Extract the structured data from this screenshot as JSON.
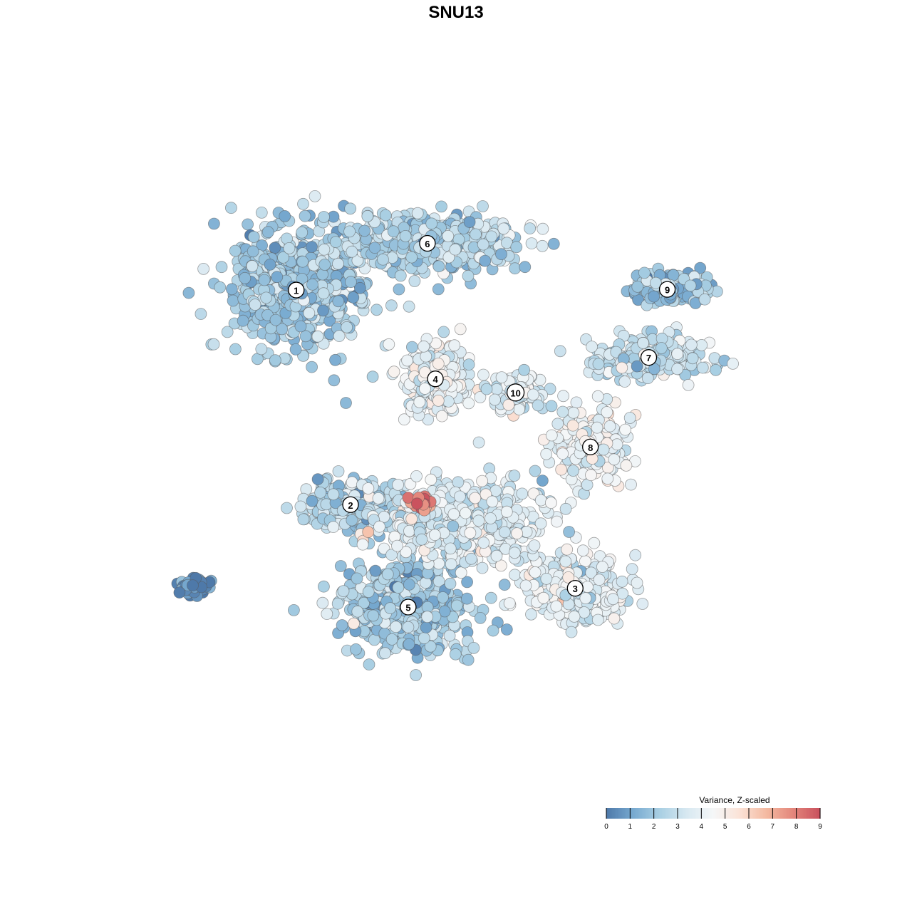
{
  "chart_data": {
    "type": "scatter",
    "title": "SNU13",
    "xlabel": "",
    "ylabel": "",
    "grid": false,
    "legend": {
      "title": "Variance, Z-scaled",
      "position": "bottom-right",
      "range": [
        0,
        9
      ],
      "ticks": [
        "0",
        "1",
        "2",
        "3",
        "4",
        "5",
        "6",
        "7",
        "8",
        "9"
      ],
      "colors": [
        "#4e79a9",
        "#77a9d0",
        "#a9cfe3",
        "#d7e8f1",
        "#f5f7f8",
        "#fbe2d6",
        "#f4b9a0",
        "#e3857b",
        "#c9505d"
      ]
    },
    "xlim": [
      0,
      1000
    ],
    "ylim": [
      0,
      1000
    ],
    "clusters": [
      {
        "label": "1",
        "x": 232,
        "y": 756,
        "value": 2.1,
        "sx": 110,
        "sy": 95,
        "n": 560
      },
      {
        "label": "6",
        "x": 430,
        "y": 828,
        "value": 2.6,
        "sx": 140,
        "sy": 42,
        "n": 520
      },
      {
        "label": "9",
        "x": 792,
        "y": 757,
        "value": 2.0,
        "sx": 62,
        "sy": 22,
        "n": 150
      },
      {
        "label": "7",
        "x": 764,
        "y": 652,
        "value": 3.0,
        "sx": 90,
        "sy": 30,
        "n": 240
      },
      {
        "label": "4",
        "x": 442,
        "y": 619,
        "value": 3.9,
        "sx": 46,
        "sy": 52,
        "n": 270
      },
      {
        "label": "10",
        "x": 563,
        "y": 598,
        "value": 3.6,
        "sx": 38,
        "sy": 30,
        "n": 110
      },
      {
        "label": "8",
        "x": 676,
        "y": 514,
        "value": 4.2,
        "sx": 55,
        "sy": 55,
        "n": 220
      },
      {
        "label": "2",
        "x": 314,
        "y": 425,
        "value": 2.4,
        "sx": 68,
        "sy": 38,
        "n": 250
      },
      {
        "label": "3",
        "x": 653,
        "y": 296,
        "value": 3.8,
        "sx": 78,
        "sy": 48,
        "n": 340
      },
      {
        "label": "5",
        "x": 401,
        "y": 267,
        "value": 2.2,
        "sx": 95,
        "sy": 70,
        "n": 520
      },
      {
        "label": "",
        "x": 480,
        "y": 400,
        "value": 3.6,
        "sx": 120,
        "sy": 60,
        "n": 600
      },
      {
        "label": "",
        "x": 420,
        "y": 428,
        "value": 7.8,
        "sx": 16,
        "sy": 14,
        "n": 28
      },
      {
        "label": "",
        "x": 75,
        "y": 300,
        "value": 0.5,
        "sx": 22,
        "sy": 12,
        "n": 55
      }
    ]
  }
}
